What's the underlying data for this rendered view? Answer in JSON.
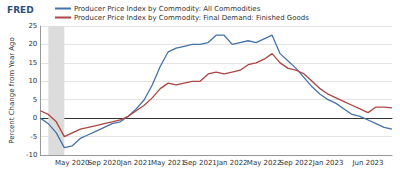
{
  "chart_data": {
    "type": "line",
    "title": "FRED",
    "y_label": "Percent Change from Year Ago",
    "categories": [
      null,
      null,
      null,
      null,
      "May 2020",
      null,
      null,
      null,
      "Sep 2020",
      null,
      null,
      null,
      "Jan 2021",
      null,
      null,
      null,
      "May 2021",
      null,
      null,
      null,
      "Sep 2021",
      null,
      null,
      null,
      "Jan 2022",
      null,
      null,
      null,
      "May 2022",
      null,
      null,
      null,
      "Sep 2022",
      null,
      null,
      null,
      "Jan 2023",
      null,
      null,
      null,
      null,
      "Jun 2023",
      null,
      null,
      null
    ],
    "series": [
      {
        "name": "Producer Price Index by Commodity: All Commodities",
        "color": "#4572a7",
        "values": [
          0,
          -1.5,
          -4,
          -8,
          -7.5,
          -5.5,
          -4.5,
          -3.5,
          -2.5,
          -1.5,
          -1,
          0.5,
          2.5,
          5,
          9,
          14,
          18,
          19,
          19.5,
          20,
          20,
          20.5,
          22.5,
          22.5,
          20,
          20.5,
          21,
          20.5,
          21.5,
          22.5,
          17.5,
          15.5,
          13.5,
          11,
          8.5,
          6.5,
          5,
          4,
          2.5,
          1,
          0.5,
          -0.5,
          -1.5,
          -2.5,
          -3
        ]
      },
      {
        "name": "Producer Price Index by Commodity: Final Demand: Finished Goods",
        "color": "#aa4643",
        "values": [
          2,
          1,
          -1,
          -5,
          -4,
          -3,
          -2.5,
          -2,
          -1.5,
          -1,
          -0.5,
          0.5,
          2,
          3.5,
          5.5,
          8,
          9.5,
          9,
          9.5,
          10,
          10,
          12,
          12.5,
          12,
          12.5,
          13,
          14.5,
          15,
          16,
          17.5,
          15,
          13.5,
          13,
          12,
          10,
          8,
          6.5,
          5.5,
          4.5,
          3.5,
          2.5,
          1.5,
          3,
          3,
          2.8
        ]
      }
    ],
    "recession": [
      1,
      3
    ],
    "ylim": [
      -10,
      25
    ],
    "yticks": [
      -10,
      -5,
      0,
      5,
      10,
      15,
      20,
      25
    ],
    "grid": true,
    "legend": "top-left"
  }
}
